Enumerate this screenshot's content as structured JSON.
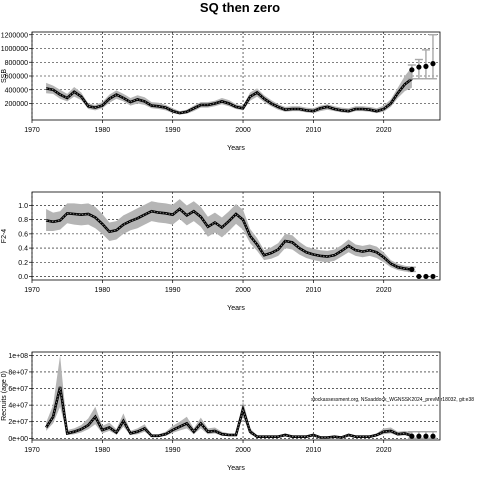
{
  "figure": {
    "title": "SQ then zero",
    "annotation": "stockassessment.org, NSsaddock_WGNSSK2024_prevM,r18032, git:e38"
  },
  "chart_data": [
    {
      "type": "line",
      "panel": "ssb",
      "xlabel": "Years",
      "ylabel": "SSB",
      "xlim": [
        1970,
        2028
      ],
      "ylim": [
        -40000,
        1240000
      ],
      "x_ticks": [
        1970,
        1980,
        1990,
        2000,
        2010,
        2020
      ],
      "y_ticks": [
        200000,
        400000,
        600000,
        800000,
        1000000,
        1200000
      ],
      "y_tick_labels": [
        "200000",
        "400000",
        "600000",
        "800000",
        "1000000",
        "1200000"
      ],
      "grid": true,
      "x": [
        1972,
        1973,
        1974,
        1975,
        1976,
        1977,
        1978,
        1979,
        1980,
        1981,
        1982,
        1983,
        1984,
        1985,
        1986,
        1987,
        1988,
        1989,
        1990,
        1991,
        1992,
        1993,
        1994,
        1995,
        1996,
        1997,
        1998,
        1999,
        2000,
        2001,
        2002,
        2003,
        2004,
        2005,
        2006,
        2007,
        2008,
        2009,
        2010,
        2011,
        2012,
        2013,
        2014,
        2015,
        2016,
        2017,
        2018,
        2019,
        2020,
        2021,
        2022,
        2023,
        2024
      ],
      "series": [
        {
          "role": "estimate",
          "values": [
            420000,
            400000,
            330000,
            280000,
            370000,
            300000,
            160000,
            140000,
            170000,
            270000,
            330000,
            280000,
            220000,
            260000,
            230000,
            170000,
            160000,
            140000,
            90000,
            60000,
            80000,
            130000,
            180000,
            180000,
            200000,
            230000,
            200000,
            150000,
            130000,
            300000,
            360000,
            270000,
            200000,
            150000,
            110000,
            120000,
            120000,
            100000,
            90000,
            130000,
            150000,
            120000,
            100000,
            90000,
            120000,
            120000,
            110000,
            90000,
            120000,
            200000,
            350000,
            480000,
            560000
          ]
        },
        {
          "role": "upper",
          "values": [
            500000,
            460000,
            400000,
            340000,
            440000,
            360000,
            200000,
            180000,
            220000,
            330000,
            390000,
            340000,
            280000,
            320000,
            290000,
            220000,
            210000,
            180000,
            130000,
            90000,
            110000,
            170000,
            220000,
            220000,
            240000,
            280000,
            250000,
            190000,
            170000,
            360000,
            420000,
            320000,
            250000,
            190000,
            150000,
            160000,
            160000,
            140000,
            130000,
            170000,
            190000,
            160000,
            140000,
            130000,
            160000,
            160000,
            150000,
            130000,
            170000,
            260000,
            430000,
            600000,
            730000
          ]
        },
        {
          "role": "lower",
          "values": [
            350000,
            340000,
            270000,
            230000,
            300000,
            250000,
            120000,
            100000,
            130000,
            210000,
            270000,
            230000,
            170000,
            200000,
            180000,
            130000,
            120000,
            100000,
            60000,
            40000,
            50000,
            90000,
            140000,
            140000,
            160000,
            190000,
            160000,
            120000,
            100000,
            240000,
            300000,
            220000,
            160000,
            110000,
            80000,
            90000,
            90000,
            70000,
            60000,
            90000,
            110000,
            90000,
            70000,
            60000,
            90000,
            90000,
            80000,
            60000,
            80000,
            150000,
            280000,
            380000,
            430000
          ]
        }
      ],
      "forecast": {
        "x": [
          2024,
          2025,
          2026,
          2027
        ],
        "median": [
          690000,
          730000,
          740000,
          780000
        ],
        "low": [
          560000,
          560000,
          560000,
          560000
        ],
        "high": [
          760000,
          840000,
          980000,
          1200000
        ]
      }
    },
    {
      "type": "line",
      "panel": "fbar",
      "xlabel": "Years",
      "ylabel": "F2-4",
      "xlim": [
        1970,
        2028
      ],
      "ylim": [
        -0.05,
        1.19
      ],
      "x_ticks": [
        1970,
        1980,
        1990,
        2000,
        2010,
        2020
      ],
      "y_ticks": [
        0.0,
        0.2,
        0.4,
        0.6,
        0.8,
        1.0
      ],
      "y_tick_labels": [
        "0.0",
        "0.2",
        "0.4",
        "0.6",
        "0.8",
        "1.0"
      ],
      "grid": true,
      "x": [
        1972,
        1973,
        1974,
        1975,
        1976,
        1977,
        1978,
        1979,
        1980,
        1981,
        1982,
        1983,
        1984,
        1985,
        1986,
        1987,
        1988,
        1989,
        1990,
        1991,
        1992,
        1993,
        1994,
        1995,
        1996,
        1997,
        1998,
        1999,
        2000,
        2001,
        2002,
        2003,
        2004,
        2005,
        2006,
        2007,
        2008,
        2009,
        2010,
        2011,
        2012,
        2013,
        2014,
        2015,
        2016,
        2017,
        2018,
        2019,
        2020,
        2021,
        2022,
        2023,
        2024
      ],
      "series": [
        {
          "role": "estimate",
          "values": [
            0.79,
            0.77,
            0.79,
            0.89,
            0.88,
            0.87,
            0.88,
            0.83,
            0.74,
            0.63,
            0.65,
            0.73,
            0.78,
            0.82,
            0.87,
            0.92,
            0.9,
            0.89,
            0.87,
            0.95,
            0.86,
            0.92,
            0.84,
            0.7,
            0.76,
            0.69,
            0.78,
            0.88,
            0.8,
            0.57,
            0.45,
            0.3,
            0.33,
            0.38,
            0.5,
            0.48,
            0.4,
            0.34,
            0.31,
            0.29,
            0.28,
            0.3,
            0.36,
            0.43,
            0.37,
            0.35,
            0.37,
            0.34,
            0.27,
            0.18,
            0.13,
            0.11,
            0.1
          ]
        },
        {
          "role": "upper",
          "values": [
            0.95,
            0.9,
            0.92,
            1.03,
            1.03,
            1.02,
            1.03,
            0.98,
            0.88,
            0.76,
            0.78,
            0.86,
            0.91,
            0.96,
            1.01,
            1.06,
            1.04,
            1.03,
            1.01,
            1.09,
            1.0,
            1.06,
            0.98,
            0.84,
            0.9,
            0.83,
            0.92,
            1.02,
            0.94,
            0.67,
            0.54,
            0.37,
            0.41,
            0.47,
            0.6,
            0.58,
            0.49,
            0.42,
            0.39,
            0.37,
            0.36,
            0.38,
            0.44,
            0.52,
            0.45,
            0.43,
            0.45,
            0.42,
            0.34,
            0.23,
            0.18,
            0.15,
            0.14
          ]
        },
        {
          "role": "lower",
          "values": [
            0.64,
            0.64,
            0.66,
            0.75,
            0.73,
            0.72,
            0.73,
            0.68,
            0.6,
            0.5,
            0.52,
            0.6,
            0.65,
            0.68,
            0.73,
            0.78,
            0.76,
            0.75,
            0.73,
            0.81,
            0.72,
            0.78,
            0.7,
            0.56,
            0.62,
            0.55,
            0.64,
            0.74,
            0.66,
            0.47,
            0.36,
            0.23,
            0.25,
            0.29,
            0.4,
            0.38,
            0.31,
            0.26,
            0.23,
            0.21,
            0.2,
            0.22,
            0.28,
            0.34,
            0.29,
            0.27,
            0.29,
            0.26,
            0.2,
            0.13,
            0.09,
            0.07,
            0.06
          ]
        }
      ],
      "forecast": {
        "x": [
          2024,
          2025,
          2026,
          2027
        ],
        "median": [
          0.1,
          0.0,
          0.0,
          0.0
        ],
        "low": [
          0.07,
          0.0,
          0.0,
          0.0
        ],
        "high": [
          0.13,
          0.0,
          0.0,
          0.0
        ]
      }
    },
    {
      "type": "line",
      "panel": "recruitment",
      "xlabel": "Years",
      "ylabel": "Recruits (age 0)",
      "xlim": [
        1970,
        2028
      ],
      "ylim": [
        -2000000,
        104000000
      ],
      "x_ticks": [
        1970,
        1980,
        1990,
        2000,
        2010,
        2020
      ],
      "y_ticks": [
        0,
        20000000,
        40000000,
        60000000,
        80000000,
        100000000
      ],
      "y_tick_labels": [
        "0e+00",
        "2e+07",
        "4e+07",
        "6e+07",
        "8e+07",
        "1e+08"
      ],
      "grid": true,
      "x": [
        1972,
        1973,
        1974,
        1975,
        1976,
        1977,
        1978,
        1979,
        1980,
        1981,
        1982,
        1983,
        1984,
        1985,
        1986,
        1987,
        1988,
        1989,
        1990,
        1991,
        1992,
        1993,
        1994,
        1995,
        1996,
        1997,
        1998,
        1999,
        2000,
        2001,
        2002,
        2003,
        2004,
        2005,
        2006,
        2007,
        2008,
        2009,
        2010,
        2011,
        2012,
        2013,
        2014,
        2015,
        2016,
        2017,
        2018,
        2019,
        2020,
        2021,
        2022,
        2023,
        2024
      ],
      "series": [
        {
          "role": "estimate",
          "values": [
            13000000,
            26000000,
            62000000,
            6000000,
            8000000,
            11000000,
            16000000,
            26000000,
            10000000,
            13000000,
            7000000,
            21000000,
            6000000,
            8000000,
            12000000,
            3000000,
            3000000,
            5000000,
            10000000,
            14000000,
            18000000,
            8000000,
            18000000,
            8000000,
            9000000,
            5000000,
            4000000,
            4000000,
            35000000,
            8000000,
            2000000,
            2000000,
            2000000,
            2000000,
            4000000,
            2000000,
            2000000,
            2000000,
            4000000,
            1000000,
            1000000,
            2000000,
            1000000,
            4000000,
            2000000,
            2000000,
            2000000,
            4000000,
            8000000,
            9000000,
            5000000,
            6000000,
            3000000
          ]
        },
        {
          "role": "upper",
          "values": [
            19000000,
            40000000,
            100000000,
            10000000,
            12000000,
            16000000,
            24000000,
            38000000,
            15000000,
            19000000,
            11000000,
            30000000,
            9000000,
            12000000,
            17000000,
            5000000,
            5000000,
            8000000,
            15000000,
            20000000,
            26000000,
            12000000,
            25000000,
            12000000,
            13000000,
            8000000,
            6000000,
            6000000,
            45000000,
            12000000,
            3500000,
            3500000,
            3500000,
            3500000,
            6000000,
            3500000,
            3500000,
            3500000,
            6000000,
            2000000,
            2000000,
            3500000,
            2000000,
            6000000,
            3500000,
            3500000,
            3500000,
            6000000,
            12000000,
            13000000,
            8000000,
            9000000,
            7000000
          ]
        },
        {
          "role": "lower",
          "values": [
            9000000,
            18000000,
            38000000,
            4000000,
            5000000,
            7000000,
            11000000,
            17000000,
            6000000,
            9000000,
            4500000,
            14000000,
            4000000,
            5000000,
            8000000,
            1800000,
            1800000,
            3000000,
            6500000,
            9500000,
            12000000,
            5000000,
            12000000,
            5000000,
            6000000,
            3000000,
            2500000,
            2500000,
            26000000,
            5000000,
            1000000,
            1000000,
            1000000,
            1000000,
            2500000,
            1000000,
            1000000,
            1000000,
            2500000,
            500000,
            500000,
            1000000,
            500000,
            2500000,
            1000000,
            1000000,
            1000000,
            2500000,
            5000000,
            6000000,
            3000000,
            3500000,
            1500000
          ]
        }
      ],
      "forecast": {
        "x": [
          2024,
          2025,
          2026,
          2027
        ],
        "median": [
          2500000,
          2500000,
          2500000,
          2500000
        ],
        "low": [
          0,
          0,
          0,
          0
        ],
        "high": [
          8000000,
          8000000,
          8000000,
          8000000
        ]
      }
    }
  ]
}
